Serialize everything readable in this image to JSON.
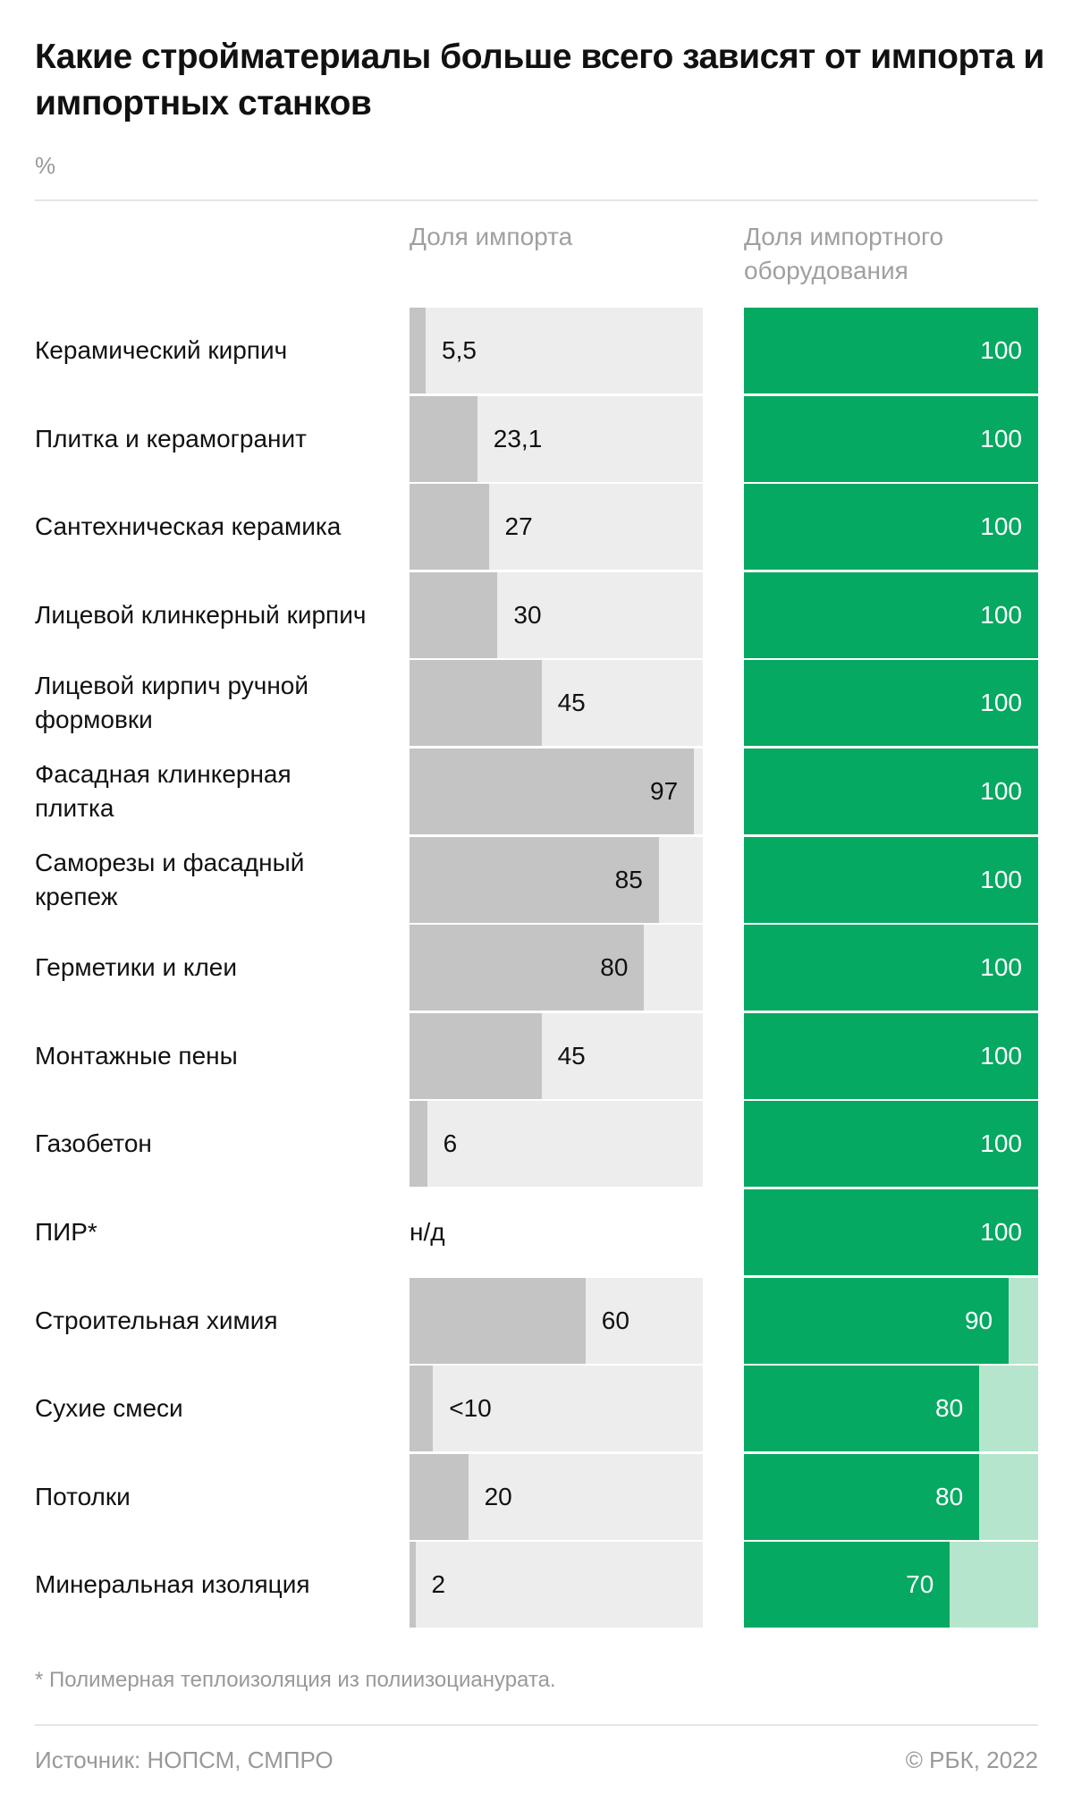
{
  "chart_data": {
    "type": "bar",
    "title": "Какие стройматериалы больше всего зависят от импорта и импортных станков",
    "unit": "%",
    "series": [
      {
        "name": "Доля импорта"
      },
      {
        "name": "Доля импортного оборудования"
      }
    ],
    "xlim": [
      0,
      100
    ],
    "rows": [
      {
        "category": "Керамический кирпич",
        "import": 5.5,
        "import_label": "5,5",
        "equipment": 100
      },
      {
        "category": "Плитка и керамогранит",
        "import": 23.1,
        "import_label": "23,1",
        "equipment": 100
      },
      {
        "category": "Сантехническая керамика",
        "import": 27,
        "import_label": "27",
        "equipment": 100
      },
      {
        "category": "Лицевой клинкерный кирпич",
        "import": 30,
        "import_label": "30",
        "equipment": 100
      },
      {
        "category": "Лицевой кирпич ручной формовки",
        "import": 45,
        "import_label": "45",
        "equipment": 100
      },
      {
        "category": "Фасадная клинкерная плитка",
        "import": 97,
        "import_label": "97",
        "equipment": 100
      },
      {
        "category": "Саморезы и фасадный крепеж",
        "import": 85,
        "import_label": "85",
        "equipment": 100
      },
      {
        "category": "Герметики и клеи",
        "import": 80,
        "import_label": "80",
        "equipment": 100
      },
      {
        "category": "Монтажные пены",
        "import": 45,
        "import_label": "45",
        "equipment": 100
      },
      {
        "category": "Газобетон",
        "import": 6,
        "import_label": "6",
        "equipment": 100
      },
      {
        "category": "ПИР*",
        "import": null,
        "import_label": "н/д",
        "equipment": 100
      },
      {
        "category": "Строительная химия",
        "import": 60,
        "import_label": "60",
        "equipment": 90
      },
      {
        "category": "Сухие смеси",
        "import": 8,
        "import_label": "<10",
        "equipment": 80
      },
      {
        "category": "Потолки",
        "import": 20,
        "import_label": "20",
        "equipment": 80
      },
      {
        "category": "Минеральная изоляция",
        "import": 2,
        "import_label": "2",
        "equipment": 70
      }
    ],
    "colors": {
      "import_fill": "#c4c4c4",
      "import_track": "#ededed",
      "equipment_fill": "#05a962",
      "equipment_track": "#b5e5cc"
    }
  },
  "footnote": "* Полимерная теплоизоляция из полиизоцианурата.",
  "source": "Источник: НОПСМ, СМПРО",
  "copyright": "© РБК, 2022"
}
